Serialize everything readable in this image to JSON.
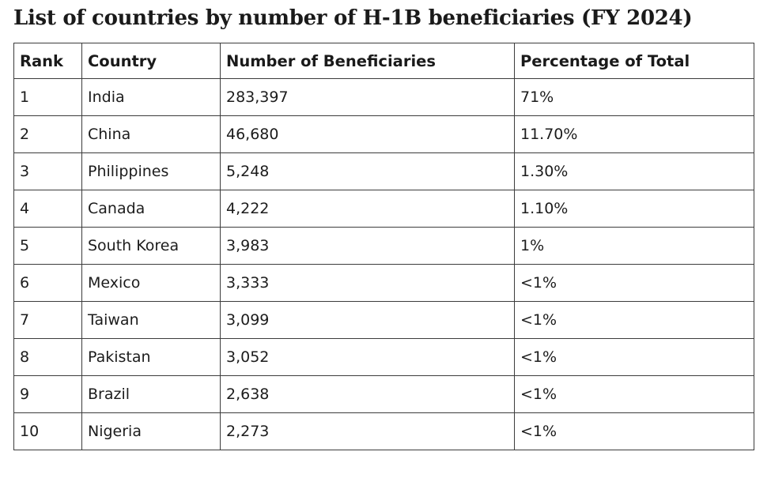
{
  "page": {
    "title": "List of countries by number of H-1B beneficiaries (FY 2024)"
  },
  "chart_data": {
    "type": "table",
    "title": "List of countries by number of H-1B beneficiaries (FY 2024)",
    "columns": [
      "Rank",
      "Country",
      "Number of Beneficiaries",
      "Percentage of Total"
    ],
    "rows": [
      [
        "1",
        "India",
        "283,397",
        "71%"
      ],
      [
        "2",
        "China",
        "46,680",
        "11.70%"
      ],
      [
        "3",
        "Philippines",
        "5,248",
        "1.30%"
      ],
      [
        "4",
        "Canada",
        "4,222",
        "1.10%"
      ],
      [
        "5",
        "South Korea",
        "3,983",
        "1%"
      ],
      [
        "6",
        "Mexico",
        "3,333",
        "<1%"
      ],
      [
        "7",
        "Taiwan",
        "3,099",
        "<1%"
      ],
      [
        "8",
        "Pakistan",
        "3,052",
        "<1%"
      ],
      [
        "9",
        "Brazil",
        "2,638",
        "<1%"
      ],
      [
        "10",
        "Nigeria",
        "2,273",
        "<1%"
      ]
    ],
    "layout": {
      "header_row_bold": true,
      "grid": "all-borders",
      "text_align": "left",
      "legend": "none"
    },
    "colors": {
      "text": "#1c1c1c",
      "border": "#3c3c3c",
      "background": "#ffffff"
    }
  }
}
